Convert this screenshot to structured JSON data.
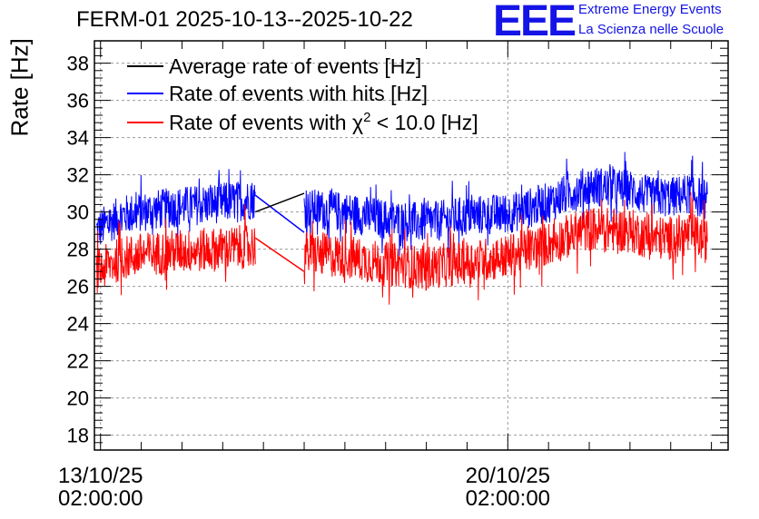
{
  "header": {
    "title": "FERM-01 2025-10-13--2025-10-22",
    "logo_mark": "EEE",
    "logo_line1": "Extreme Energy Events",
    "logo_line2": "La Scienza nelle Scuole"
  },
  "chart_data": {
    "type": "line",
    "title": "FERM-01 2025-10-13--2025-10-22",
    "ylabel": "Rate [Hz]",
    "xlabel": "",
    "ylim": [
      17.2,
      39.2
    ],
    "yticks": [
      18,
      20,
      22,
      24,
      26,
      28,
      30,
      32,
      34,
      36,
      38
    ],
    "xlim": [
      -0.15,
      15.41
    ],
    "xticks": [
      {
        "x": 0,
        "line1": "13/10/25",
        "line2": "02:00:00"
      },
      {
        "x": 10,
        "line1": "20/10/25",
        "line2": "02:00:00"
      }
    ],
    "x_unit": "half-days since 13/10/25 02:00:00",
    "grid": true,
    "legend_position": "top-left",
    "series": [
      {
        "name": "Average rate of events [Hz]",
        "legend": "Average rate of events [Hz]",
        "color": "#000000",
        "noise": 0,
        "x": [
          3.8,
          5.0
        ],
        "y": [
          30.0,
          31.0
        ]
      },
      {
        "name": "Rate of events with hits [Hz]",
        "legend": "Rate of events with hits [Hz]",
        "color": "#0000ff",
        "noise": 1.1,
        "x": [
          -0.1,
          0.5,
          1.0,
          2.0,
          3.0,
          3.8,
          5.0,
          6.0,
          7.0,
          8.0,
          9.0,
          10.0,
          11.0,
          11.5,
          12.0,
          13.0,
          13.5,
          14.0,
          14.5,
          14.9
        ],
        "y": [
          29.0,
          29.8,
          30.0,
          30.3,
          30.5,
          30.7,
          30.2,
          30.0,
          29.6,
          29.4,
          29.8,
          29.9,
          30.5,
          31.0,
          31.4,
          31.2,
          30.8,
          30.8,
          31.0,
          30.6
        ],
        "gap_line": [
          [
            3.8,
            30.9
          ],
          [
            5.0,
            28.9
          ]
        ]
      },
      {
        "name": "Rate of events with χ2 < 10.0 [Hz]",
        "legend_prefix": "Rate of events with ",
        "legend_symbol": "χ",
        "legend_sup": "2",
        "legend_suffix": " < 10.0 [Hz]",
        "color": "#ff0000",
        "noise": 1.2,
        "x": [
          -0.1,
          0.5,
          1.0,
          2.0,
          3.0,
          3.8,
          5.0,
          6.0,
          7.0,
          8.0,
          9.0,
          10.0,
          11.0,
          11.5,
          12.0,
          13.0,
          13.5,
          14.0,
          14.5,
          14.9
        ],
        "y": [
          26.8,
          27.5,
          27.7,
          27.9,
          28.0,
          28.2,
          27.8,
          27.6,
          27.2,
          27.0,
          27.3,
          27.6,
          28.3,
          28.7,
          29.1,
          29.0,
          28.6,
          28.6,
          28.8,
          28.4
        ],
        "gap_line": [
          [
            3.8,
            28.6
          ],
          [
            5.0,
            26.8
          ]
        ]
      }
    ]
  }
}
